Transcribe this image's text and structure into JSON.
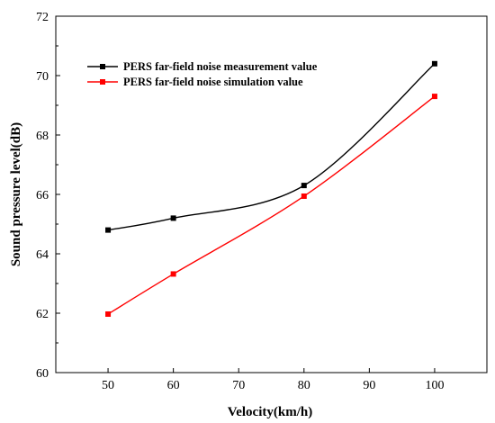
{
  "chart_data": {
    "type": "line",
    "xlabel": "Velocity(km/h)",
    "ylabel": "Sound pressure level(dB)",
    "xlim": [
      42,
      108
    ],
    "ylim": [
      60,
      72
    ],
    "xticks": [
      50,
      60,
      70,
      80,
      90,
      100
    ],
    "yticks": [
      60,
      62,
      64,
      66,
      68,
      70,
      72
    ],
    "grid": false,
    "legend": "top-left",
    "series": [
      {
        "name": "PERS far-field noise measurement value",
        "color": "#000000",
        "x": [
          50,
          60,
          80,
          100
        ],
        "values": [
          64.8,
          65.2,
          66.3,
          70.4
        ]
      },
      {
        "name": "PERS far-field noise simulation value",
        "color": "#ff0000",
        "x": [
          50,
          60,
          80,
          100
        ],
        "values": [
          61.97,
          63.32,
          65.94,
          69.3
        ]
      }
    ]
  }
}
